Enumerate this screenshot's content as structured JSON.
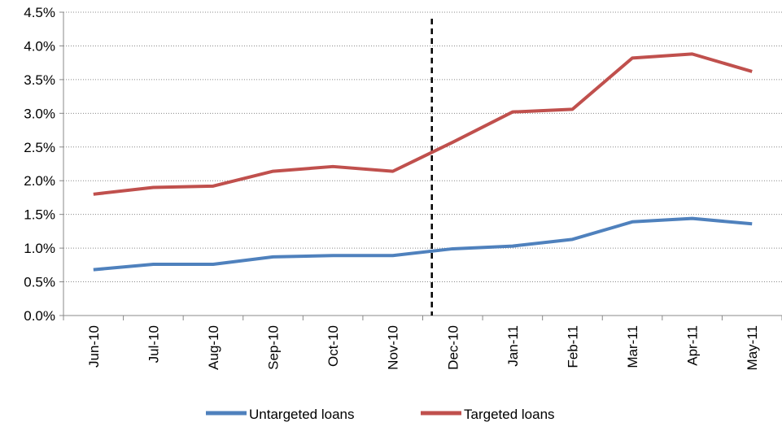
{
  "chart_data": {
    "type": "line",
    "categories": [
      "Jun-10",
      "Jul-10",
      "Aug-10",
      "Sep-10",
      "Oct-10",
      "Nov-10",
      "Dec-10",
      "Jan-11",
      "Feb-11",
      "Mar-11",
      "Apr-11",
      "May-11"
    ],
    "series": [
      {
        "name": "Untargeted loans",
        "color": "#4f81bd",
        "values": [
          0.68,
          0.76,
          0.76,
          0.87,
          0.89,
          0.89,
          0.99,
          1.03,
          1.13,
          1.39,
          1.44,
          1.36
        ]
      },
      {
        "name": "Targeted loans",
        "color": "#c0504d",
        "values": [
          1.8,
          1.9,
          1.92,
          2.14,
          2.21,
          2.14,
          2.57,
          3.02,
          3.06,
          3.82,
          3.88,
          3.62
        ]
      }
    ],
    "ylim": [
      0,
      4.5
    ],
    "yticks": [
      {
        "value": 0,
        "label": "0.0%"
      },
      {
        "value": 0.5,
        "label": "0.5%"
      },
      {
        "value": 1,
        "label": "1.0%"
      },
      {
        "value": 1.5,
        "label": "1.5%"
      },
      {
        "value": 2,
        "label": "2.0%"
      },
      {
        "value": 2.5,
        "label": "2.5%"
      },
      {
        "value": 3,
        "label": "3.0%"
      },
      {
        "value": 3.5,
        "label": "3.5%"
      },
      {
        "value": 4,
        "label": "4.0%"
      },
      {
        "value": 4.5,
        "label": "4.5%"
      }
    ],
    "grid": true,
    "legend": "bottom"
  }
}
